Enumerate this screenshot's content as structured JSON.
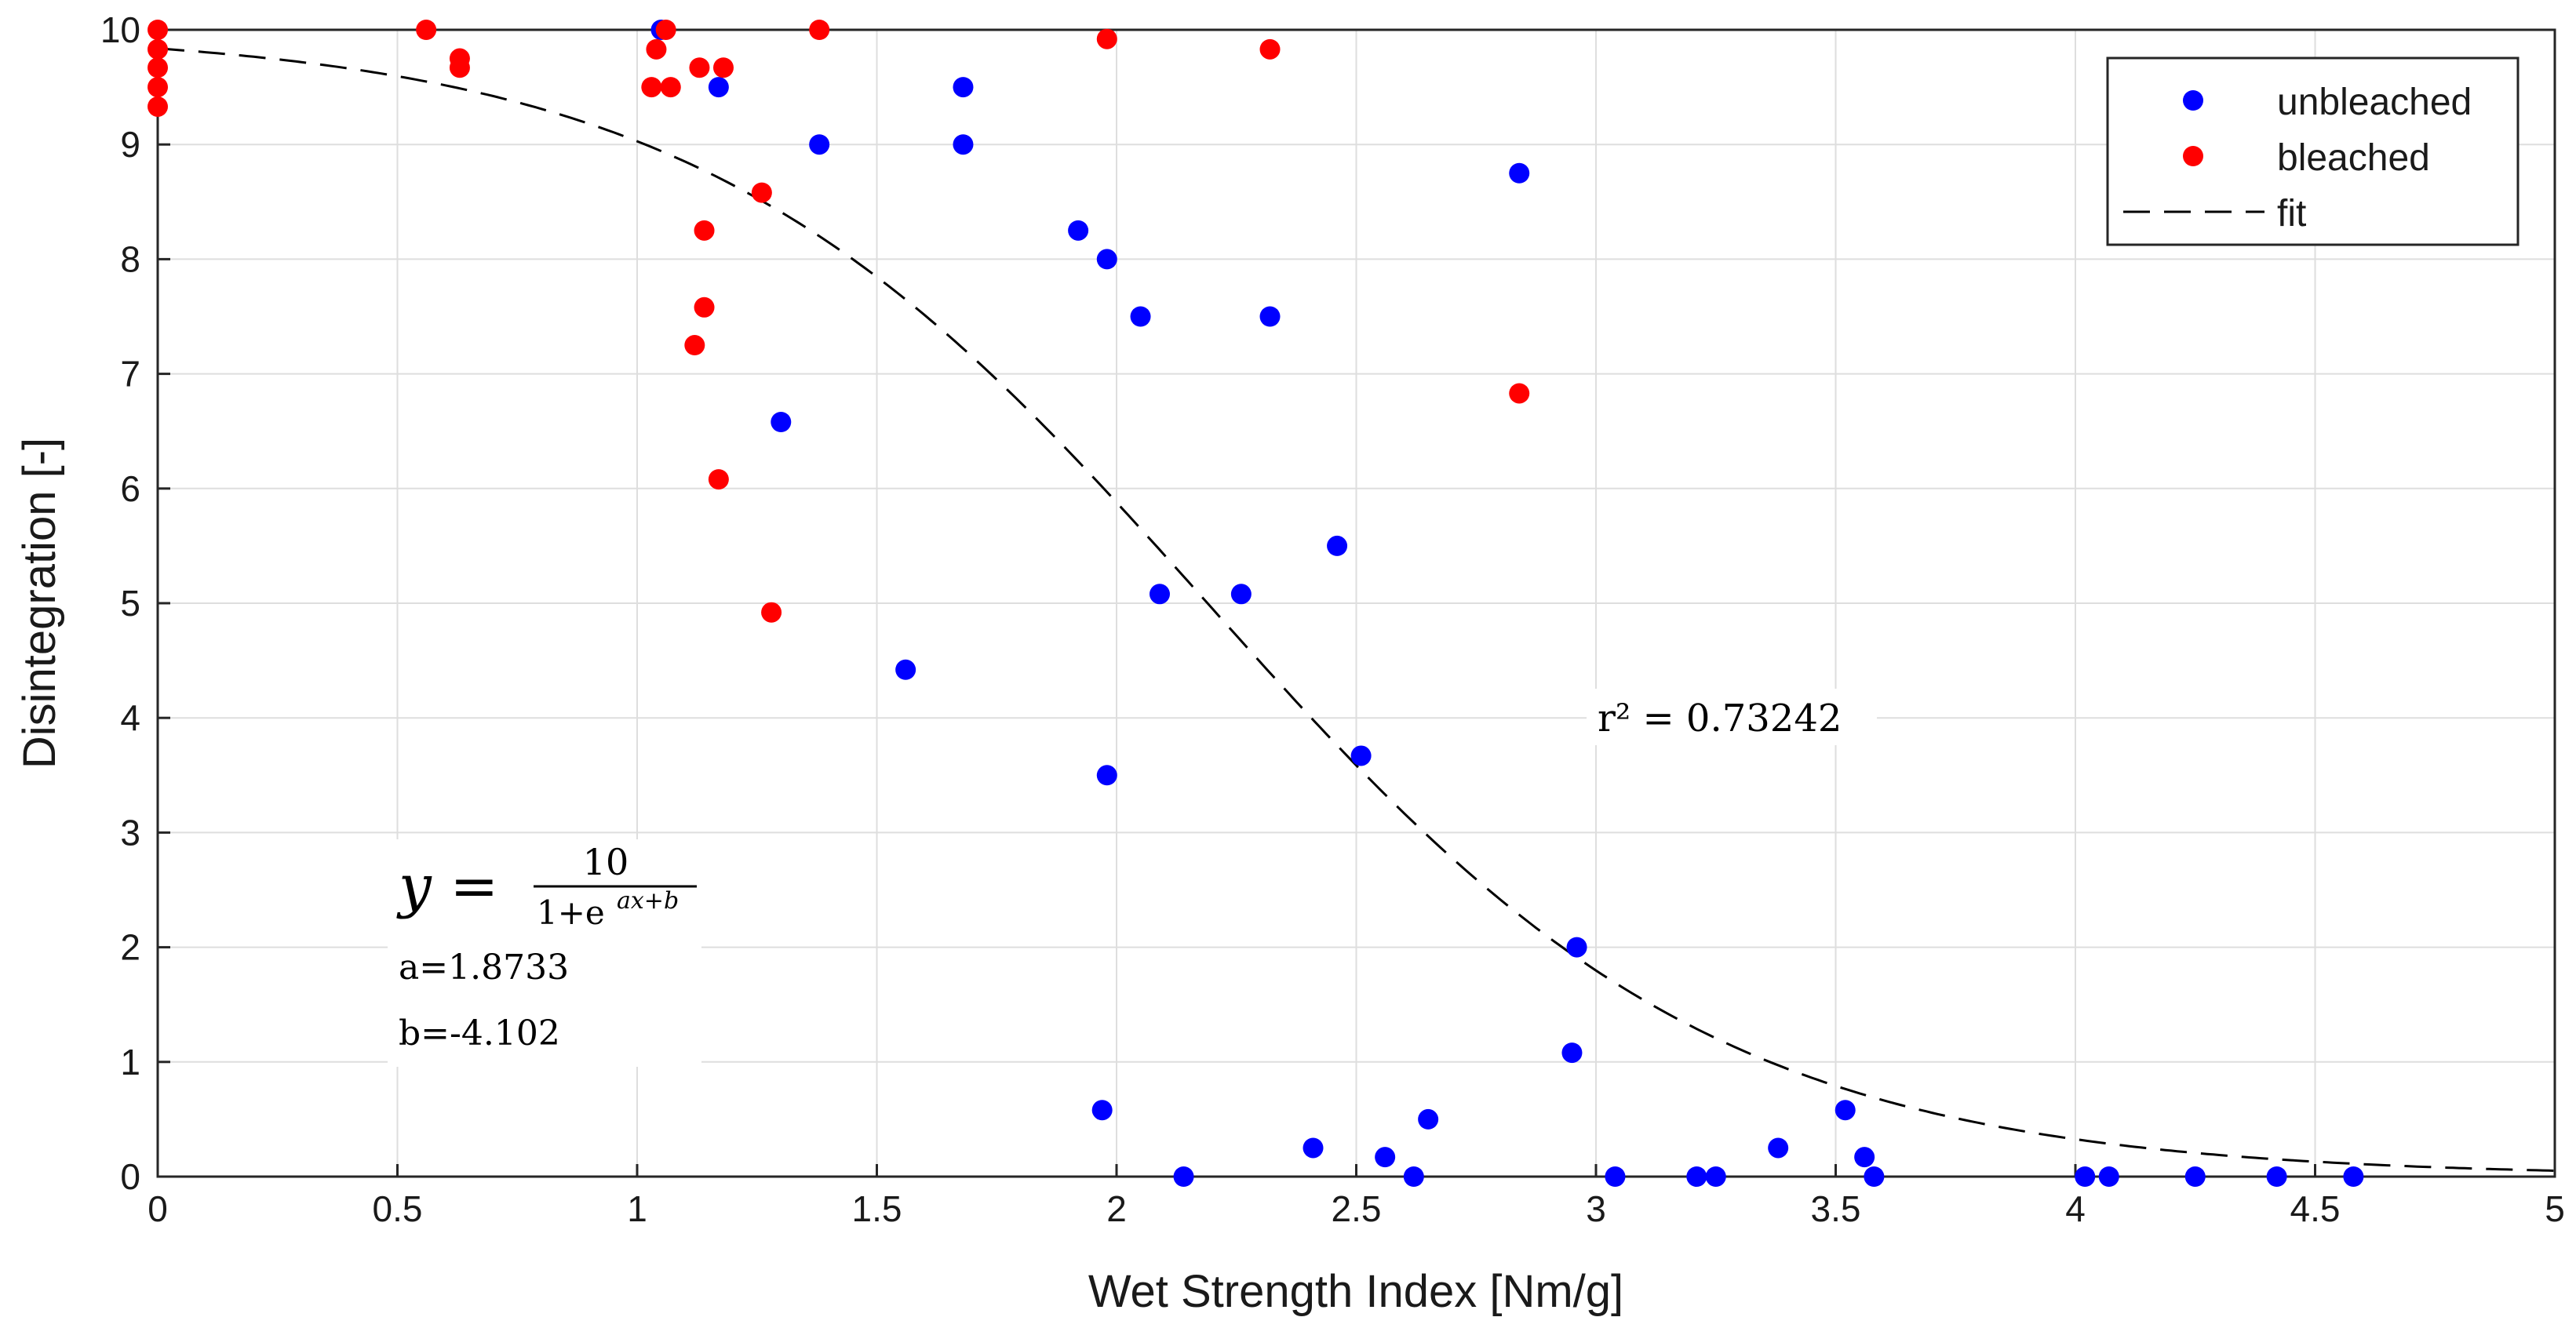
{
  "chart_data": {
    "type": "scatter",
    "xlabel": "Wet Strength Index [Nm/g]",
    "ylabel": "Disintegration [-]",
    "xlim": [
      0,
      5
    ],
    "ylim": [
      0,
      10
    ],
    "xticks": [
      "0",
      "0.5",
      "1",
      "1.5",
      "2",
      "2.5",
      "3",
      "3.5",
      "4",
      "4.5",
      "5"
    ],
    "yticks": [
      "0",
      "1",
      "2",
      "3",
      "4",
      "5",
      "6",
      "7",
      "8",
      "9",
      "10"
    ],
    "grid": true,
    "legend_position": "top-right",
    "colors": {
      "unbleached": "#0000ff",
      "bleached": "#ff0000",
      "fit": "#000000"
    },
    "series": [
      {
        "name": "unbleached",
        "points": [
          [
            1.05,
            10.0
          ],
          [
            1.17,
            9.5
          ],
          [
            1.68,
            9.5
          ],
          [
            1.38,
            9.0
          ],
          [
            1.68,
            9.0
          ],
          [
            2.84,
            8.75
          ],
          [
            1.92,
            8.25
          ],
          [
            1.98,
            8.0
          ],
          [
            2.05,
            7.5
          ],
          [
            2.32,
            7.5
          ],
          [
            1.3,
            6.58
          ],
          [
            2.46,
            5.5
          ],
          [
            2.09,
            5.08
          ],
          [
            2.26,
            5.08
          ],
          [
            1.56,
            4.42
          ],
          [
            2.51,
            3.67
          ],
          [
            1.98,
            3.5
          ],
          [
            2.96,
            2.0
          ],
          [
            2.95,
            1.08
          ],
          [
            1.97,
            0.58
          ],
          [
            2.65,
            0.5
          ],
          [
            2.41,
            0.25
          ],
          [
            2.56,
            0.17
          ],
          [
            2.14,
            0.0
          ],
          [
            2.62,
            0.0
          ],
          [
            3.04,
            0.0
          ],
          [
            3.21,
            0.0
          ],
          [
            3.25,
            0.0
          ],
          [
            3.38,
            0.25
          ],
          [
            3.52,
            0.58
          ],
          [
            3.56,
            0.17
          ],
          [
            3.58,
            0.0
          ],
          [
            4.02,
            0.0
          ],
          [
            4.07,
            0.0
          ],
          [
            4.25,
            0.0
          ],
          [
            4.42,
            0.0
          ],
          [
            4.58,
            0.0
          ]
        ]
      },
      {
        "name": "bleached",
        "points": [
          [
            0.0,
            10.0
          ],
          [
            0.0,
            9.83
          ],
          [
            0.0,
            9.67
          ],
          [
            0.0,
            9.5
          ],
          [
            0.0,
            9.33
          ],
          [
            0.56,
            10.0
          ],
          [
            0.63,
            9.75
          ],
          [
            0.63,
            9.67
          ],
          [
            1.06,
            10.0
          ],
          [
            1.38,
            10.0
          ],
          [
            1.04,
            9.83
          ],
          [
            1.03,
            9.5
          ],
          [
            1.07,
            9.5
          ],
          [
            1.13,
            9.67
          ],
          [
            1.18,
            9.67
          ],
          [
            1.98,
            9.92
          ],
          [
            2.32,
            9.83
          ],
          [
            1.26,
            8.58
          ],
          [
            1.14,
            8.25
          ],
          [
            1.14,
            7.58
          ],
          [
            1.12,
            7.25
          ],
          [
            2.84,
            6.83
          ],
          [
            1.17,
            6.08
          ],
          [
            1.28,
            4.92
          ]
        ]
      },
      {
        "name": "fit",
        "style": "dashed",
        "equation": {
          "numerator": 10,
          "a": 1.8733,
          "b": -4.102
        }
      }
    ],
    "annotations": {
      "r2_label": "r² = 0.73242",
      "equation_lhs": "y =",
      "equation_numerator": "10",
      "equation_denominator": "1+e",
      "equation_exponent": "ax+b",
      "a_label": "a=1.8733",
      "b_label": "b=-4.102"
    }
  }
}
